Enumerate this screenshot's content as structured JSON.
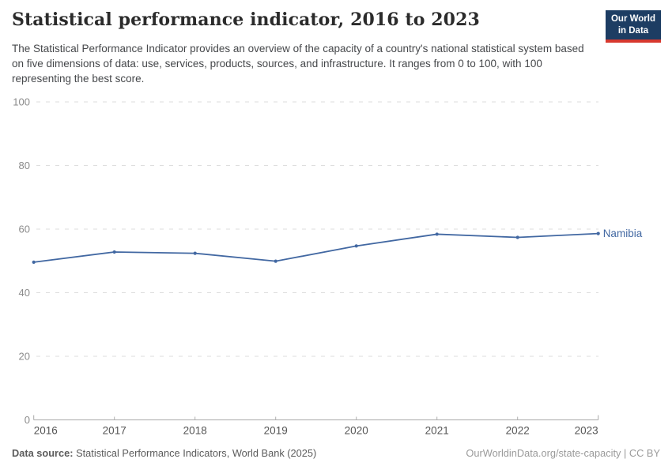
{
  "header": {
    "title": "Statistical performance indicator, 2016 to 2023",
    "subtitle": "The Statistical Performance Indicator provides an overview of the capacity of a country's national statistical system based on five dimensions of data: use, services, products, sources, and infrastructure. It ranges from 0 to 100, with 100 representing the best score.",
    "logo": {
      "line1": "Our World",
      "line2": "in Data",
      "bg_color": "#1d3d63",
      "bar_color": "#d7382e"
    }
  },
  "chart_data": {
    "type": "line",
    "title": "Statistical performance indicator, 2016 to 2023",
    "xlabel": "",
    "ylabel": "",
    "x": [
      "2016",
      "2017",
      "2018",
      "2019",
      "2020",
      "2021",
      "2022",
      "2023"
    ],
    "series": [
      {
        "name": "Namibia",
        "color": "#4268a2",
        "values": [
          49.6,
          52.8,
          52.4,
          49.9,
          54.7,
          58.4,
          57.4,
          58.6
        ]
      }
    ],
    "ylim": [
      0,
      100
    ],
    "yticks": [
      0,
      20,
      40,
      60,
      80,
      100
    ],
    "grid": "horizontal-dashed",
    "legend": "line-end-label"
  },
  "footer": {
    "datasource_label": "Data source:",
    "datasource_value": "Statistical Performance Indicators, World Bank (2025)",
    "credit": "OurWorldinData.org/state-capacity | CC BY"
  }
}
